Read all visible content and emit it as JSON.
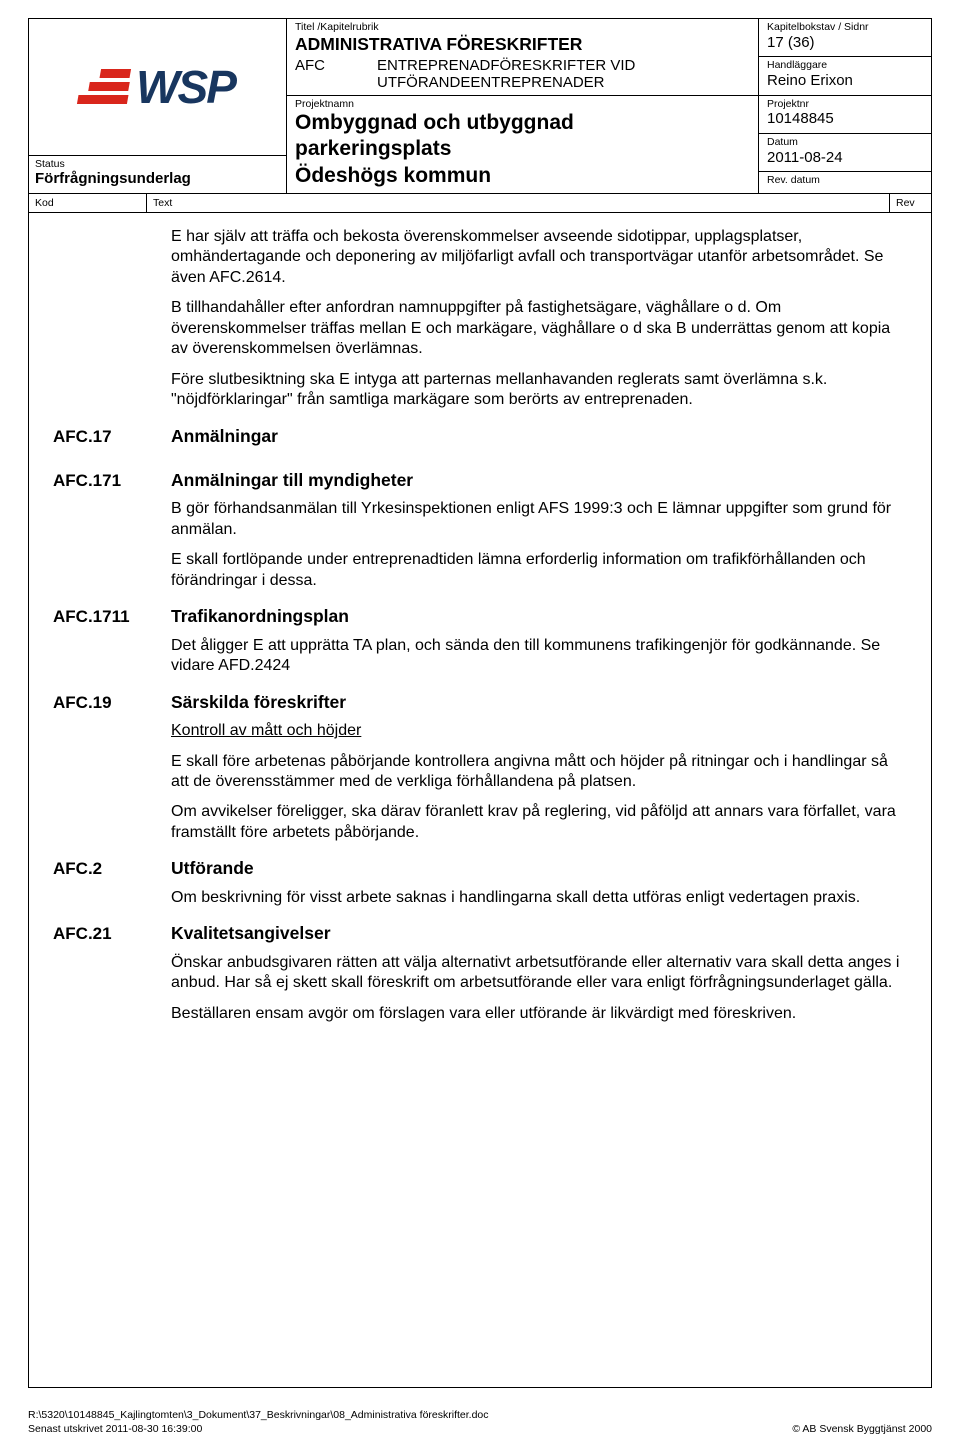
{
  "header": {
    "titel_label": "Titel /Kapitelrubrik",
    "titel_value": "ADMINISTRATIVA FÖRESKRIFTER",
    "afc_code": "AFC",
    "afc_desc_line1": "ENTREPRENADFÖRESKRIFTER VID",
    "afc_desc_line2": "UTFÖRANDEENTREPRENADER",
    "projektnamn_label": "Projektnamn",
    "projektnamn_line1": "Ombyggnad och utbyggnad",
    "projektnamn_line2": "parkeringsplats",
    "projektnamn_line3": "Ödeshögs kommun",
    "status_label": "Status",
    "status_value": "Förfrågningsunderlag",
    "kapitel_label": "Kapitelbokstav / Sidnr",
    "kapitel_value": "17 (36)",
    "handlaggare_label": "Handläggare",
    "handlaggare_value": "Reino Erixon",
    "projektnr_label": "Projektnr",
    "projektnr_value": "10148845",
    "datum_label": "Datum",
    "datum_value": "2011-08-24",
    "revdatum_label": "Rev. datum",
    "revdatum_value": ""
  },
  "kodrow": {
    "kod": "Kod",
    "text": "Text",
    "rev": "Rev"
  },
  "intro": {
    "p1": "E har själv att träffa och bekosta överenskommelser avseende sidotippar, upplagsplatser, omhändertagande och deponering av miljöfarligt avfall och transportvägar utanför arbetsområdet. Se även AFC.2614.",
    "p2": "B tillhandahåller efter anfordran namnuppgifter på fastighetsägare, väghållare o d. Om överenskommelser träffas mellan E och markägare, väghållare o d ska B underrättas genom att kopia av överenskommelsen överlämnas.",
    "p3": "Före slutbesiktning ska E intyga att parternas mellanhavanden reglerats samt överlämna s.k. \"nöjdförklaringar\" från samtliga markägare som berörts av entreprenaden."
  },
  "sections": {
    "afc17": {
      "code": "AFC.17",
      "title": "Anmälningar"
    },
    "afc171": {
      "code": "AFC.171",
      "title": "Anmälningar till myndigheter",
      "p1": "B gör förhandsanmälan till Yrkesinspektionen enligt AFS 1999:3 och E lämnar uppgifter som grund för anmälan.",
      "p2": "E skall fortlöpande under entreprenadtiden lämna erforderlig information om trafikförhållanden och förändringar i dessa."
    },
    "afc1711": {
      "code": "AFC.1711",
      "title": "Trafikanordningsplan",
      "p1": "Det åligger E att upprätta TA plan, och sända den till kommunens trafikingenjör för godkännande. Se vidare AFD.2424"
    },
    "afc19": {
      "code": "AFC.19",
      "title": "Särskilda föreskrifter",
      "sub": "Kontroll av mått och höjder",
      "p1": "E skall före arbetenas påbörjande kontrollera angivna mått och höjder på ritningar och i handlingar så att de överensstämmer med de verkliga förhållandena på platsen.",
      "p2": "Om avvikelser föreligger, ska därav föranlett krav på reglering, vid påföljd att annars vara förfallet, vara framställt före arbetets påbörjande."
    },
    "afc2": {
      "code": "AFC.2",
      "title": "Utförande",
      "p1": "Om beskrivning för visst arbete saknas i handlingarna skall detta utföras enligt vedertagen praxis."
    },
    "afc21": {
      "code": "AFC.21",
      "title": "Kvalitetsangivelser",
      "p1": "Önskar anbudsgivaren rätten att välja alternativt arbetsutförande eller alternativ vara skall detta anges i anbud. Har så ej skett skall föreskrift om arbetsutförande eller vara enligt förfrågningsunderlaget gälla.",
      "p2": "Beställaren ensam avgör om förslagen vara eller utförande är likvärdigt med föreskriven."
    }
  },
  "footer": {
    "path": "R:\\5320\\10148845_Kajlingtomten\\3_Dokument\\37_Beskrivningar\\08_Administrativa föreskrifter.doc",
    "printed": "Senast utskrivet 2011-08-30 16:39:00",
    "copyright": "© AB Svensk Byggtjänst 2000"
  },
  "logo": {
    "text": "WSP"
  },
  "colors": {
    "text": "#000000",
    "logo_text": "#18365f",
    "logo_bars": "#d9261c",
    "border": "#000000",
    "background": "#ffffff"
  }
}
